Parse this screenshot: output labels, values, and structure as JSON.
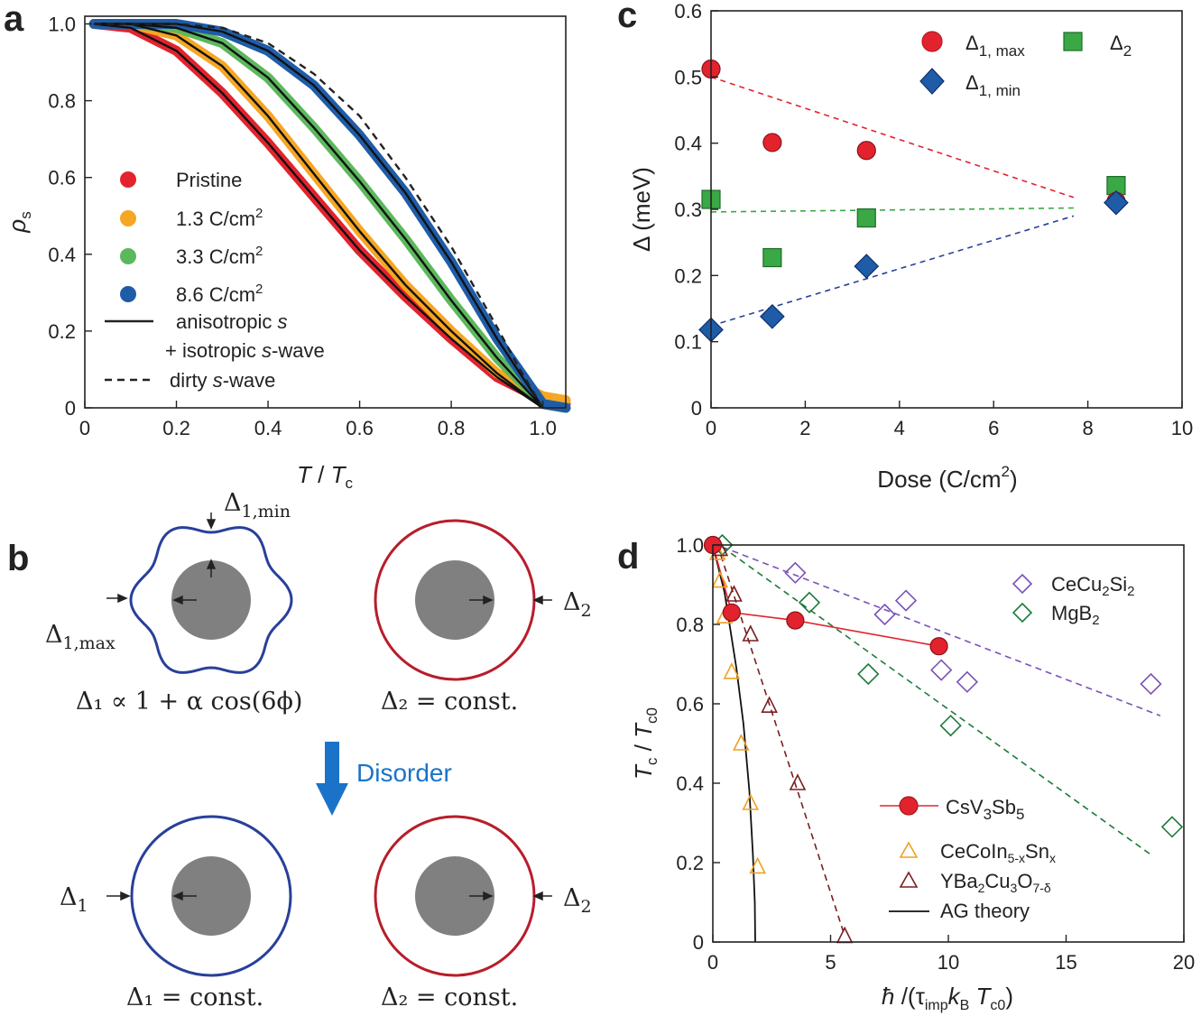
{
  "colors": {
    "red": "#e2232d",
    "orange": "#f5a623",
    "green": "#5cb85c",
    "blue": "#1f5ca8",
    "red_dark": "#b81d2a",
    "navy": "#28409a",
    "sq_green": "#3aa845",
    "purple": "#7b52b5",
    "mg_green": "#1e7a3a",
    "ce_orange": "#f0a020",
    "ybco": "#7a1e20",
    "gray": "#808080",
    "disorder": "#1a73c8"
  },
  "panel_labels": {
    "a": "a",
    "b": "b",
    "c": "c",
    "d": "d"
  },
  "panel_b": {
    "top_left_formula": "Δ₁ ∝ 1 + α cos(6ϕ)",
    "top_right_formula": "Δ₂ = const.",
    "bottom_left_formula": "Δ₁ = const.",
    "bottom_right_formula": "Δ₂ = const.",
    "delta1_max": "Δ1,max",
    "delta1_min": "Δ1,min",
    "delta2": "Δ2",
    "delta1": "Δ1",
    "disorder_label": "Disorder"
  },
  "chart_data": [
    {
      "id": "a",
      "type": "line",
      "xlabel": "T / Tc",
      "ylabel": "ρs",
      "xlim": [
        0,
        1.05
      ],
      "ylim": [
        0,
        1.02
      ],
      "xticks": [
        "0",
        "0.2",
        "0.4",
        "0.6",
        "0.8",
        "1.0"
      ],
      "yticks": [
        "0",
        "0.2",
        "0.4",
        "0.6",
        "0.8",
        "1.0"
      ],
      "series": [
        {
          "name": "Pristine",
          "color": "#e2232d",
          "x": [
            0.02,
            0.1,
            0.2,
            0.3,
            0.4,
            0.5,
            0.6,
            0.7,
            0.8,
            0.9,
            1.0,
            1.05
          ],
          "values": [
            1.0,
            0.99,
            0.93,
            0.82,
            0.69,
            0.55,
            0.41,
            0.29,
            0.18,
            0.08,
            0.02,
            0.01
          ]
        },
        {
          "name": "1.3 C/cm2",
          "color": "#f5a623",
          "x": [
            0.02,
            0.1,
            0.2,
            0.3,
            0.4,
            0.5,
            0.6,
            0.7,
            0.8,
            0.9,
            1.0,
            1.05
          ],
          "values": [
            1.0,
            1.0,
            0.97,
            0.89,
            0.76,
            0.61,
            0.46,
            0.32,
            0.2,
            0.09,
            0.03,
            0.02
          ]
        },
        {
          "name": "3.3 C/cm2",
          "color": "#5cb85c",
          "x": [
            0.02,
            0.1,
            0.2,
            0.3,
            0.4,
            0.5,
            0.6,
            0.7,
            0.8,
            0.9,
            1.0,
            1.05
          ],
          "values": [
            1.0,
            1.0,
            0.99,
            0.95,
            0.86,
            0.73,
            0.59,
            0.44,
            0.28,
            0.13,
            0.01,
            0.0
          ]
        },
        {
          "name": "8.6 C/cm2",
          "color": "#1f5ca8",
          "x": [
            0.02,
            0.1,
            0.2,
            0.3,
            0.4,
            0.5,
            0.6,
            0.7,
            0.8,
            0.9,
            1.0,
            1.05
          ],
          "values": [
            1.0,
            1.0,
            1.0,
            0.98,
            0.93,
            0.84,
            0.71,
            0.56,
            0.38,
            0.18,
            0.01,
            0.0
          ]
        }
      ],
      "fit_x": [
        0.02,
        0.1,
        0.2,
        0.3,
        0.4,
        0.5,
        0.6,
        0.7,
        0.8,
        0.9,
        1.0
      ],
      "fits": [
        [
          1.0,
          0.99,
          0.93,
          0.82,
          0.69,
          0.55,
          0.41,
          0.29,
          0.18,
          0.08,
          0.0
        ],
        [
          1.0,
          1.0,
          0.97,
          0.89,
          0.76,
          0.61,
          0.46,
          0.32,
          0.2,
          0.09,
          0.0
        ],
        [
          1.0,
          1.0,
          0.99,
          0.95,
          0.86,
          0.73,
          0.59,
          0.44,
          0.28,
          0.13,
          0.0
        ],
        [
          1.0,
          1.0,
          1.0,
          0.98,
          0.93,
          0.84,
          0.71,
          0.56,
          0.38,
          0.18,
          0.0
        ]
      ],
      "dirty_x": [
        0.02,
        0.1,
        0.2,
        0.3,
        0.4,
        0.5,
        0.6,
        0.7,
        0.8,
        0.9,
        0.95,
        1.0
      ],
      "dirty_values": [
        1.0,
        1.0,
        1.0,
        0.99,
        0.95,
        0.87,
        0.76,
        0.6,
        0.42,
        0.21,
        0.1,
        0.0
      ],
      "legend": {
        "pristine": "Pristine",
        "d13_num": "1.3 C/cm",
        "d13_exp": "2",
        "d33_num": "3.3 C/cm",
        "d33_exp": "2",
        "d86_num": "8.6 C/cm",
        "d86_exp": "2",
        "aniso_prefix": "anisotropic ",
        "aniso_s": "s",
        "iso_prefix": "+ isotropic ",
        "iso_s": "s",
        "iso_suffix": "-wave",
        "dirty_prefix": "dirty ",
        "dirty_s": "s",
        "dirty_suffix": "-wave"
      }
    },
    {
      "id": "c",
      "type": "scatter",
      "xlabel": "Dose (C/cm2)",
      "ylabel": "Δ (meV)",
      "xlim": [
        0,
        10
      ],
      "ylim": [
        0,
        0.6
      ],
      "xticks": [
        "0",
        "2",
        "4",
        "6",
        "8",
        "10"
      ],
      "yticks": [
        "0",
        "0.1",
        "0.2",
        "0.3",
        "0.4",
        "0.5",
        "0.6"
      ],
      "series": [
        {
          "name": "Δ1, max",
          "marker": "circle",
          "color": "#e2232d",
          "x": [
            0,
            1.3,
            3.3,
            8.6
          ],
          "values": [
            0.512,
            0.401,
            0.389,
            0.312
          ]
        },
        {
          "name": "Δ2",
          "marker": "square",
          "color": "#3aa845",
          "x": [
            0,
            1.3,
            3.3,
            8.6
          ],
          "values": [
            0.315,
            0.227,
            0.287,
            0.336
          ]
        },
        {
          "name": "Δ1, min",
          "marker": "diamond",
          "color": "#1f5ca8",
          "x": [
            0,
            1.3,
            3.3,
            8.6
          ],
          "values": [
            0.118,
            0.138,
            0.214,
            0.31
          ]
        }
      ],
      "guides": [
        {
          "color": "#e2232d",
          "x": [
            0,
            7.7
          ],
          "values": [
            0.5,
            0.318
          ]
        },
        {
          "color": "#3aa845",
          "x": [
            0,
            7.7
          ],
          "values": [
            0.296,
            0.302
          ]
        },
        {
          "color": "#28409a",
          "x": [
            0,
            7.7
          ],
          "values": [
            0.124,
            0.29
          ]
        }
      ],
      "legend": {
        "d1max_main": "Δ",
        "d1max_sub": "1, max",
        "d2_main": "Δ",
        "d2_sub": "2",
        "d1min_main": "Δ",
        "d1min_sub": "1, min"
      },
      "xlabel_main": "Dose (C/cm",
      "xlabel_exp": "2",
      "xlabel_close": ")"
    },
    {
      "id": "d",
      "type": "scatter",
      "xlabel": "ħ/(τimp kB Tc0)",
      "ylabel": "Tc / Tc0",
      "xlim": [
        0,
        20
      ],
      "ylim": [
        0,
        1.0
      ],
      "xticks": [
        "0",
        "5",
        "10",
        "15",
        "20"
      ],
      "yticks": [
        "0",
        "0.2",
        "0.4",
        "0.6",
        "0.8",
        "1.0"
      ],
      "series": [
        {
          "name": "CsV3Sb5",
          "marker": "circle",
          "color": "#e2232d",
          "x": [
            0,
            0.8,
            3.5,
            9.6
          ],
          "values": [
            1.0,
            0.83,
            0.81,
            0.745
          ]
        },
        {
          "name": "CeCu2Si2",
          "marker": "diamond-open",
          "color": "#7b52b5",
          "x": [
            3.5,
            7.3,
            8.2,
            9.7,
            10.8,
            18.6
          ],
          "values": [
            0.93,
            0.825,
            0.86,
            0.685,
            0.655,
            0.65
          ]
        },
        {
          "name": "MgB2",
          "marker": "diamond-open",
          "color": "#1e7a3a",
          "x": [
            0.4,
            4.1,
            6.6,
            10.1,
            19.5
          ],
          "values": [
            1.0,
            0.855,
            0.675,
            0.545,
            0.29
          ]
        },
        {
          "name": "CeCoIn5-xSnx",
          "marker": "triangle-open",
          "color": "#f0a020",
          "x": [
            0.2,
            0.3,
            0.5,
            0.8,
            1.2,
            1.6,
            1.9
          ],
          "values": [
            0.98,
            0.91,
            0.82,
            0.68,
            0.5,
            0.35,
            0.19
          ]
        },
        {
          "name": "YBa2Cu3O7-δ",
          "marker": "triangle-open",
          "color": "#7a1e20",
          "x": [
            0.3,
            0.9,
            1.6,
            2.4,
            3.6,
            5.6
          ],
          "values": [
            0.99,
            0.875,
            0.775,
            0.595,
            0.4,
            0.015
          ]
        }
      ],
      "guides": [
        {
          "color": "#7b52b5",
          "x": [
            0.4,
            19.0
          ],
          "values": [
            0.995,
            0.57
          ]
        },
        {
          "color": "#1e7a3a",
          "x": [
            0.4,
            18.6
          ],
          "values": [
            0.995,
            0.22
          ]
        },
        {
          "color": "#7a1e20",
          "x": [
            0.2,
            5.6
          ],
          "values": [
            1.0,
            0.015
          ]
        }
      ],
      "ag_theory": {
        "x": [
          0,
          0.5,
          1.0,
          1.3,
          1.55,
          1.7,
          1.78,
          1.8
        ],
        "values": [
          1.0,
          0.88,
          0.69,
          0.55,
          0.38,
          0.22,
          0.1,
          0.0
        ]
      },
      "legend": {
        "cecu_a": "CeCu",
        "cecu_b": "2",
        "cecu_c": "Si",
        "cecu_d": "2",
        "mgb_a": "MgB",
        "mgb_b": "2",
        "csv_a": "CsV",
        "csv_b": "3",
        "csv_c": "Sb",
        "csv_d": "5",
        "cecoin_a": "CeCoIn",
        "cecoin_b": "5-x",
        "cecoin_c": "Sn",
        "cecoin_d": "x",
        "ybco_a": "YBa",
        "ybco_b": "2",
        "ybco_c": "Cu",
        "ybco_d": "3",
        "ybco_e": "O",
        "ybco_f": "7-δ",
        "ag": "AG theory"
      }
    }
  ]
}
